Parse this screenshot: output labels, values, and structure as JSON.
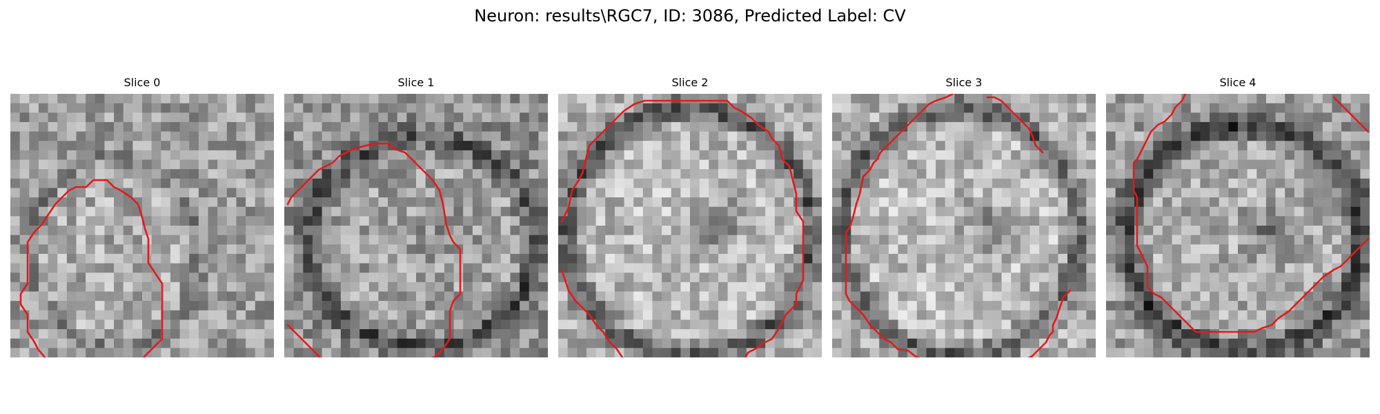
{
  "figure": {
    "title": "Neuron: results\\RGC7, ID: 3086, Predicted Label: CV"
  },
  "slices": [
    {
      "title": "Slice 0"
    },
    {
      "title": "Slice 1"
    },
    {
      "title": "Slice 2"
    },
    {
      "title": "Slice 3"
    },
    {
      "title": "Slice 4"
    }
  ],
  "colors": {
    "contour": "#e31a1c"
  }
}
